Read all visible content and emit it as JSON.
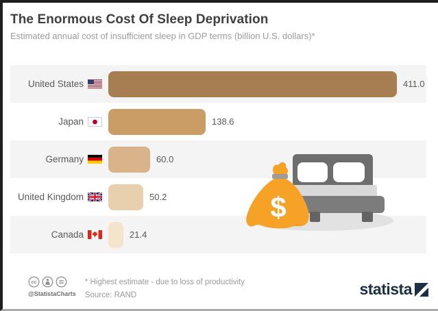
{
  "header": {
    "title": "The Enormous Cost Of Sleep Deprivation",
    "subtitle": "Estimated annual cost of insufficient sleep in GDP terms (billion U.S. dollars)*"
  },
  "chart_data": {
    "type": "bar",
    "orientation": "horizontal",
    "title": "The Enormous Cost Of Sleep Deprivation",
    "subtitle": "Estimated annual cost of insufficient sleep in GDP terms (billion U.S. dollars)*",
    "categories": [
      "United States",
      "Japan",
      "Germany",
      "United Kingdom",
      "Canada"
    ],
    "values": [
      411.0,
      138.6,
      60.0,
      50.2,
      21.4
    ],
    "value_labels": [
      "411.0",
      "138.6",
      "60.0",
      "50.2",
      "21.4"
    ],
    "flags": [
      "flag-us",
      "flag-jp",
      "flag-de",
      "flag-gb",
      "flag-ca"
    ],
    "bar_colors": [
      "#a67e52",
      "#cb9d66",
      "#d9b389",
      "#e8cfae",
      "#f3e4cb"
    ],
    "row_stripe_color": "#f4f4f4",
    "xlim": [
      0,
      411
    ],
    "unit": "billion U.S. dollars",
    "grid": false,
    "legend": false
  },
  "illustration": {
    "shadow_color": "#e2e2e2",
    "headboard_color": "#6d6d6d",
    "pillow_color": "#ffffff",
    "sheet_color": "#d9d9d9",
    "base_color": "#7c7c7c",
    "leg_color": "#636363",
    "bag_color": "#f5a226",
    "bag_tie_color": "#9b9b9b",
    "dollar_color": "#ffffff",
    "currency_symbol": "$"
  },
  "footer": {
    "license_icons": [
      "cc-icon",
      "attribution-icon",
      "equal-icon"
    ],
    "handle": "@StatistaCharts",
    "footnote": "* Highest estimate - due to loss of productivity",
    "source": "Source: RAND",
    "logo_text": "statista",
    "logo_color": "#1b2f45"
  }
}
